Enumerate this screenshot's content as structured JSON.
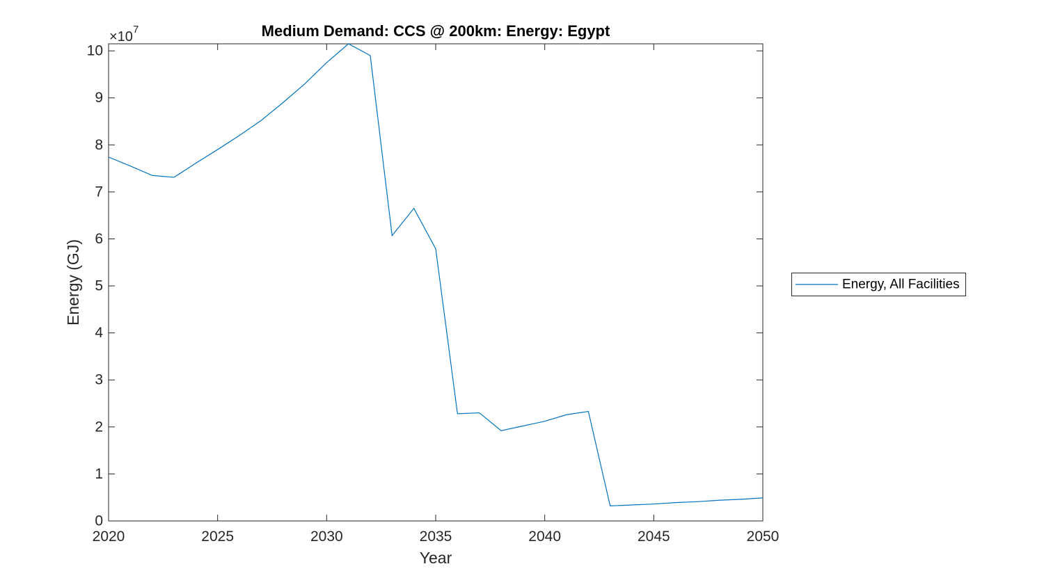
{
  "figure": {
    "background": "#ffffff"
  },
  "chart_data": {
    "type": "line",
    "title": "Medium Demand: CCS @ 200km: Energy: Egypt",
    "xlabel": "Year",
    "ylabel": "Energy (GJ)",
    "y_exponent": {
      "base": "×10",
      "exp": "7"
    },
    "x": [
      2020,
      2021,
      2022,
      2023,
      2024,
      2025,
      2026,
      2027,
      2028,
      2029,
      2030,
      2031,
      2032,
      2033,
      2034,
      2035,
      2036,
      2037,
      2038,
      2039,
      2040,
      2041,
      2042,
      2043,
      2044,
      2045,
      2046,
      2047,
      2048,
      2049,
      2050
    ],
    "series": [
      {
        "name": "Energy, All Facilities",
        "color": "#0072BD",
        "values_e7": [
          7.74,
          7.55,
          7.35,
          7.31,
          7.61,
          7.9,
          8.2,
          8.52,
          8.9,
          9.3,
          9.75,
          10.15,
          9.9,
          6.07,
          6.65,
          5.79,
          2.28,
          2.3,
          1.92,
          2.02,
          2.12,
          2.26,
          2.33,
          0.32,
          0.34,
          0.36,
          0.39,
          0.41,
          0.44,
          0.46,
          0.49
        ]
      }
    ],
    "value_unit": "GJ",
    "value_scale": 10000000,
    "xlim": [
      2020,
      2050
    ],
    "ylim_e7": [
      0,
      10.15
    ],
    "xticks": [
      2020,
      2025,
      2030,
      2035,
      2040,
      2045,
      2050
    ],
    "yticks_e7": [
      0,
      1,
      2,
      3,
      4,
      5,
      6,
      7,
      8,
      9,
      10
    ],
    "grid": false,
    "legend": {
      "entries": [
        "Energy, All Facilities"
      ],
      "position": "outside-right"
    }
  },
  "style": {
    "axis_color": "#262626",
    "tick_label_color": "#262626",
    "title_color": "#000000",
    "legend_text_color": "#000000",
    "legend_border_color": "#262626",
    "legend_background": "#ffffff"
  }
}
